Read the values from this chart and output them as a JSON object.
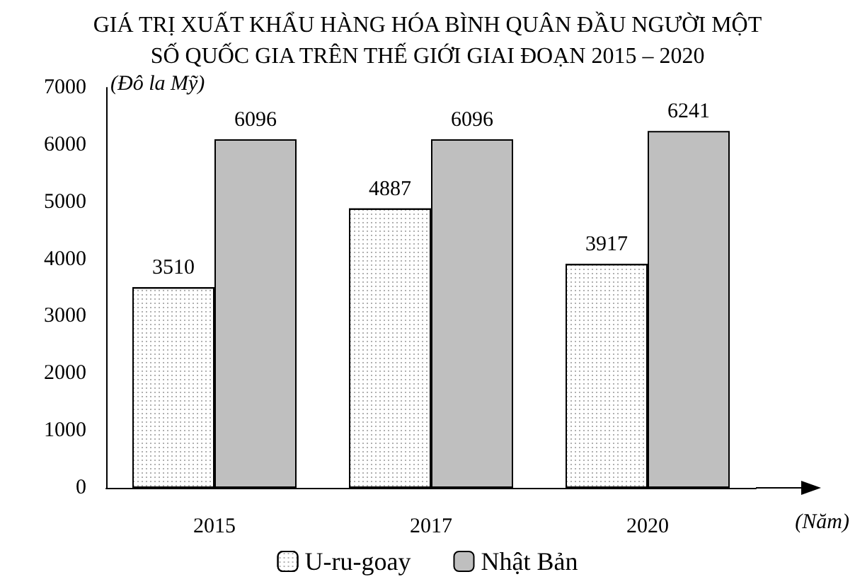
{
  "chart_data": {
    "type": "bar",
    "title": "GIÁ TRỊ XUẤT KHẨU HÀNG HÓA BÌNH QUÂN ĐẦU NGƯỜI MỘT\nSỐ QUỐC GIA TRÊN THẾ GIỚI GIAI ĐOẠN 2015 – 2020",
    "ylabel": "(Đô la Mỹ)",
    "xlabel": "(Năm)",
    "categories": [
      "2015",
      "2017",
      "2020"
    ],
    "series": [
      {
        "name": "U-ru-goay",
        "color": "#ffffff",
        "values": [
          3510,
          4887,
          3917
        ]
      },
      {
        "name": "Nhật Bản",
        "color": "#bfbfbf",
        "values": [
          6096,
          6096,
          6241
        ]
      }
    ],
    "ylim": [
      0,
      7000
    ],
    "yticks": [
      0,
      1000,
      2000,
      3000,
      4000,
      5000,
      6000,
      7000
    ],
    "data_labels": true,
    "legend": "bottom",
    "grid": false
  }
}
